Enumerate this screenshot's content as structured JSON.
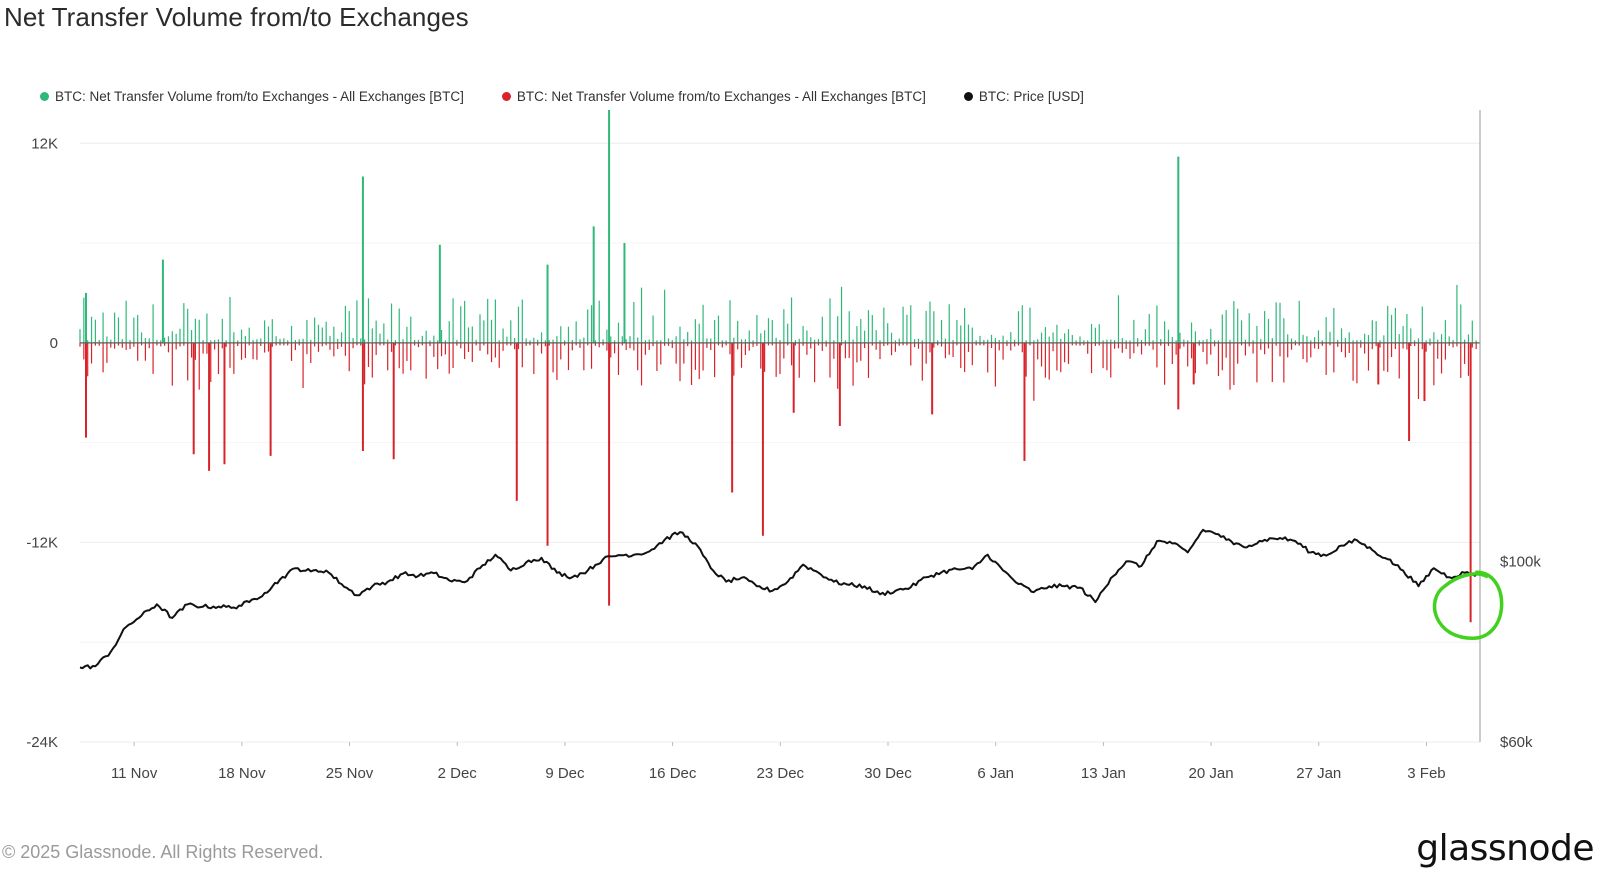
{
  "title": "Net Transfer Volume from/to Exchanges",
  "legend": [
    {
      "label": "BTC: Net Transfer Volume from/to Exchanges - All Exchanges [BTC]",
      "color": "#2fb87a"
    },
    {
      "label": "BTC: Net Transfer Volume from/to Exchanges - All Exchanges [BTC]",
      "color": "#d8232a"
    },
    {
      "label": "BTC: Price [USD]",
      "color": "#111111"
    }
  ],
  "footer": {
    "copyright": "© 2025 Glassnode. All Rights Reserved.",
    "brand": "glassnode"
  },
  "chart_data": {
    "type": "bar",
    "x_ticks": [
      "11 Nov",
      "18 Nov",
      "25 Nov",
      "2 Dec",
      "9 Dec",
      "16 Dec",
      "23 Dec",
      "30 Dec",
      "6 Jan",
      "13 Jan",
      "20 Jan",
      "27 Jan",
      "3 Feb"
    ],
    "x_range": [
      "2024-11-08",
      "2025-02-07"
    ],
    "y_left_ticks": [
      "12K",
      "0",
      "-12K",
      "-24K"
    ],
    "y_left_range": [
      -24000,
      14000
    ],
    "y_right_ticks": [
      "$100k",
      "$60k"
    ],
    "y_right_range": [
      60000,
      200000
    ],
    "colors": {
      "inflow": "#2fb87a",
      "outflow": "#d8232a",
      "price": "#111111",
      "highlight": "#41d11e"
    },
    "notable_bars": [
      {
        "date": "2024-11-08",
        "value": 3000
      },
      {
        "date": "2024-11-08",
        "value": -5700
      },
      {
        "date": "2024-11-13",
        "value": 5000
      },
      {
        "date": "2024-11-15",
        "value": -6700
      },
      {
        "date": "2024-11-16",
        "value": -7700
      },
      {
        "date": "2024-11-17",
        "value": -7300
      },
      {
        "date": "2024-11-20",
        "value": -6800
      },
      {
        "date": "2024-11-26",
        "value": 10000
      },
      {
        "date": "2024-11-26",
        "value": -6500
      },
      {
        "date": "2024-11-28",
        "value": -7000
      },
      {
        "date": "2024-12-01",
        "value": 5900
      },
      {
        "date": "2024-12-06",
        "value": -9500
      },
      {
        "date": "2024-12-08",
        "value": -12200
      },
      {
        "date": "2024-12-08",
        "value": 4700
      },
      {
        "date": "2024-12-11",
        "value": 7000
      },
      {
        "date": "2024-12-12",
        "value": 14000
      },
      {
        "date": "2024-12-12",
        "value": -15800
      },
      {
        "date": "2024-12-13",
        "value": 6000
      },
      {
        "date": "2024-12-20",
        "value": -9000
      },
      {
        "date": "2024-12-22",
        "value": -11600
      },
      {
        "date": "2024-12-24",
        "value": -4200
      },
      {
        "date": "2024-12-27",
        "value": -5000
      },
      {
        "date": "2025-01-02",
        "value": -4300
      },
      {
        "date": "2025-01-08",
        "value": -7100
      },
      {
        "date": "2025-01-18",
        "value": 11200
      },
      {
        "date": "2025-01-18",
        "value": -4000
      },
      {
        "date": "2025-01-19",
        "value": -2500
      },
      {
        "date": "2025-01-31",
        "value": -2500
      },
      {
        "date": "2025-02-02",
        "value": -5900
      },
      {
        "date": "2025-02-03",
        "value": -3500
      },
      {
        "date": "2025-02-06",
        "value": -16800
      }
    ],
    "price_series": [
      {
        "date": "2024-11-08",
        "value": 76500
      },
      {
        "date": "2024-11-09",
        "value": 76800
      },
      {
        "date": "2024-11-10",
        "value": 80000
      },
      {
        "date": "2024-11-11",
        "value": 85500
      },
      {
        "date": "2024-11-12",
        "value": 88000
      },
      {
        "date": "2024-11-13",
        "value": 90500
      },
      {
        "date": "2024-11-14",
        "value": 87500
      },
      {
        "date": "2024-11-15",
        "value": 90500
      },
      {
        "date": "2024-11-16",
        "value": 90000
      },
      {
        "date": "2024-11-17",
        "value": 90000
      },
      {
        "date": "2024-11-18",
        "value": 89800
      },
      {
        "date": "2024-11-19",
        "value": 91000
      },
      {
        "date": "2024-11-20",
        "value": 93000
      },
      {
        "date": "2024-11-21",
        "value": 96000
      },
      {
        "date": "2024-11-22",
        "value": 98500
      },
      {
        "date": "2024-11-23",
        "value": 97800
      },
      {
        "date": "2024-11-24",
        "value": 98000
      },
      {
        "date": "2024-11-25",
        "value": 95000
      },
      {
        "date": "2024-11-26",
        "value": 92500
      },
      {
        "date": "2024-11-27",
        "value": 94500
      },
      {
        "date": "2024-11-28",
        "value": 95500
      },
      {
        "date": "2024-11-29",
        "value": 97300
      },
      {
        "date": "2024-11-30",
        "value": 96800
      },
      {
        "date": "2024-12-01",
        "value": 97400
      },
      {
        "date": "2024-12-02",
        "value": 95800
      },
      {
        "date": "2024-12-03",
        "value": 95400
      },
      {
        "date": "2024-12-04",
        "value": 98500
      },
      {
        "date": "2024-12-05",
        "value": 101500
      },
      {
        "date": "2024-12-06",
        "value": 98000
      },
      {
        "date": "2024-12-07",
        "value": 99800
      },
      {
        "date": "2024-12-08",
        "value": 100800
      },
      {
        "date": "2024-12-09",
        "value": 97500
      },
      {
        "date": "2024-12-10",
        "value": 96500
      },
      {
        "date": "2024-12-11",
        "value": 98000
      },
      {
        "date": "2024-12-12",
        "value": 100500
      },
      {
        "date": "2024-12-13",
        "value": 101400
      },
      {
        "date": "2024-12-14",
        "value": 101500
      },
      {
        "date": "2024-12-15",
        "value": 102200
      },
      {
        "date": "2024-12-16",
        "value": 104800
      },
      {
        "date": "2024-12-17",
        "value": 106500
      },
      {
        "date": "2024-12-18",
        "value": 104000
      },
      {
        "date": "2024-12-19",
        "value": 98500
      },
      {
        "date": "2024-12-20",
        "value": 95500
      },
      {
        "date": "2024-12-21",
        "value": 96400
      },
      {
        "date": "2024-12-22",
        "value": 94500
      },
      {
        "date": "2024-12-23",
        "value": 93500
      },
      {
        "date": "2024-12-24",
        "value": 95500
      },
      {
        "date": "2024-12-25",
        "value": 99300
      },
      {
        "date": "2024-12-26",
        "value": 97500
      },
      {
        "date": "2024-12-27",
        "value": 95500
      },
      {
        "date": "2024-12-28",
        "value": 94800
      },
      {
        "date": "2024-12-29",
        "value": 94500
      },
      {
        "date": "2024-12-30",
        "value": 92700
      },
      {
        "date": "2024-12-31",
        "value": 93500
      },
      {
        "date": "2025-01-01",
        "value": 94300
      },
      {
        "date": "2025-01-02",
        "value": 96500
      },
      {
        "date": "2025-01-03",
        "value": 97600
      },
      {
        "date": "2025-01-04",
        "value": 98300
      },
      {
        "date": "2025-01-05",
        "value": 98300
      },
      {
        "date": "2025-01-06",
        "value": 101500
      },
      {
        "date": "2025-01-07",
        "value": 98000
      },
      {
        "date": "2025-01-08",
        "value": 95000
      },
      {
        "date": "2025-01-09",
        "value": 93200
      },
      {
        "date": "2025-01-10",
        "value": 94500
      },
      {
        "date": "2025-01-11",
        "value": 94500
      },
      {
        "date": "2025-01-12",
        "value": 94200
      },
      {
        "date": "2025-01-13",
        "value": 91000
      },
      {
        "date": "2025-01-14",
        "value": 96300
      },
      {
        "date": "2025-01-15",
        "value": 100000
      },
      {
        "date": "2025-01-16",
        "value": 99000
      },
      {
        "date": "2025-01-17",
        "value": 104500
      },
      {
        "date": "2025-01-18",
        "value": 104000
      },
      {
        "date": "2025-01-19",
        "value": 102000
      },
      {
        "date": "2025-01-20",
        "value": 107000
      },
      {
        "date": "2025-01-21",
        "value": 106000
      },
      {
        "date": "2025-01-22",
        "value": 103800
      },
      {
        "date": "2025-01-23",
        "value": 103500
      },
      {
        "date": "2025-01-24",
        "value": 104800
      },
      {
        "date": "2025-01-25",
        "value": 105200
      },
      {
        "date": "2025-01-26",
        "value": 104500
      },
      {
        "date": "2025-01-27",
        "value": 102000
      },
      {
        "date": "2025-01-28",
        "value": 101300
      },
      {
        "date": "2025-01-29",
        "value": 103500
      },
      {
        "date": "2025-01-30",
        "value": 104700
      },
      {
        "date": "2025-01-31",
        "value": 102500
      },
      {
        "date": "2025-02-01",
        "value": 100500
      },
      {
        "date": "2025-02-02",
        "value": 98000
      },
      {
        "date": "2025-02-03",
        "value": 94500
      },
      {
        "date": "2025-02-04",
        "value": 98500
      },
      {
        "date": "2025-02-05",
        "value": 96500
      },
      {
        "date": "2025-02-06",
        "value": 97500
      },
      {
        "date": "2025-02-07",
        "value": 97000
      }
    ],
    "annotations": [
      {
        "type": "circle",
        "date": "2025-02-06",
        "value": -16800
      }
    ],
    "grid": true,
    "legend_position": "top-left"
  }
}
